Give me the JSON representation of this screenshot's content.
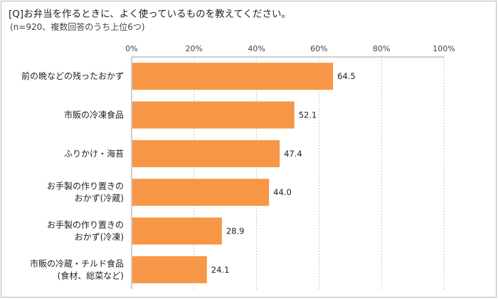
{
  "title": "[Q]お弁当を作るときに、よく使っているものを教えてください。",
  "subtitle": "(n=920、複数回答のうち上位6つ)",
  "colors": {
    "bar": "#f79646",
    "grid": "#c8c8c8",
    "axis": "#9e9e9e"
  },
  "chart_data": {
    "type": "bar",
    "orientation": "horizontal",
    "categories": [
      [
        "前の晩などの残ったおかず"
      ],
      [
        "市販の冷凍食品"
      ],
      [
        "ふりかけ・海苔"
      ],
      [
        "お手製の作り置きの",
        "おかず(冷蔵)"
      ],
      [
        "お手製の作り置きの",
        "おかず(冷凍)"
      ],
      [
        "市販の冷蔵・チルド食品",
        "(食材、総菜など)"
      ]
    ],
    "values": [
      64.5,
      52.1,
      47.4,
      44.0,
      28.9,
      24.1
    ],
    "value_labels": [
      "64.5",
      "52.1",
      "47.4",
      "44.0",
      "28.9",
      "24.1"
    ],
    "xlim": [
      0,
      100
    ],
    "ticks": [
      0,
      20,
      40,
      60,
      80,
      100
    ],
    "tick_labels": [
      "0%",
      "20%",
      "40%",
      "60%",
      "80%",
      "100%"
    ],
    "axis_position": "top",
    "grid": true,
    "legend": "none"
  }
}
